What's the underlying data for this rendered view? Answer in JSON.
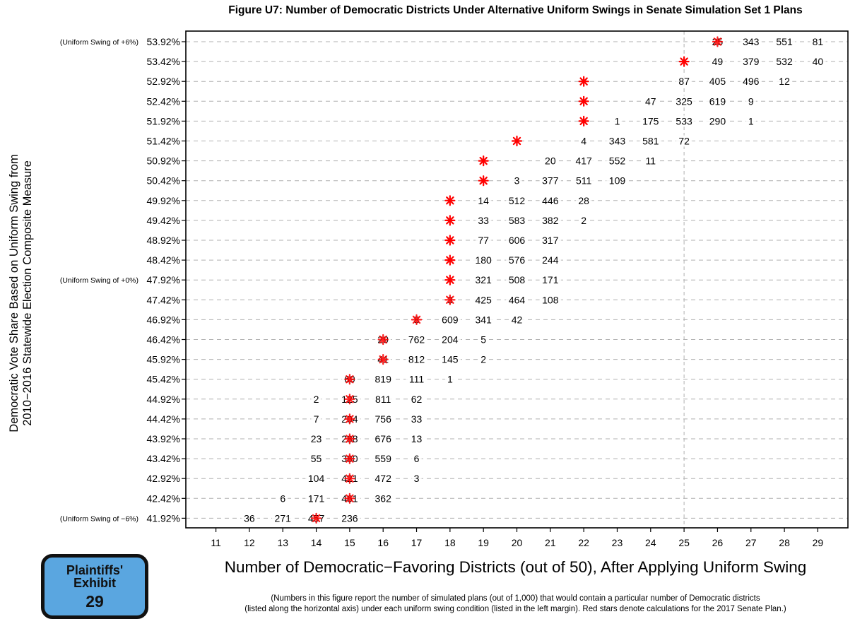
{
  "chart_data": {
    "type": "table",
    "title": "Figure U7: Number of Democratic Districts Under Alternative Uniform Swings in Senate Simulation Set 1 Plans",
    "xlabel": "Number of Democratic−Favoring Districts (out of 50), After Applying Uniform Swing",
    "ylabel_lines": [
      "Democratic Vote Share Based on Uniform Swing from",
      "2010−2016 Statewide Election Composite Measure"
    ],
    "note_lines": [
      "(Numbers in this figure report the number of simulated plans (out of 1,000) that would contain a particular number of Democratic districts",
      "(listed along the horizontal axis) under each uniform swing condition (listed in the left margin). Red stars denote calculations for the 2017 Senate Plan.)"
    ],
    "xlim": [
      10.1,
      29.9
    ],
    "xticks": [
      11,
      12,
      13,
      14,
      15,
      16,
      17,
      18,
      19,
      20,
      21,
      22,
      23,
      24,
      25,
      26,
      27,
      28,
      29
    ],
    "reference_line_x": 25,
    "grid": "horizontal dashed rows",
    "rows": [
      {
        "label": "53.92%",
        "note": "(Uniform Swing of +6%)",
        "star": 26,
        "counts": [
          [
            26,
            25
          ],
          [
            27,
            343
          ],
          [
            28,
            551
          ],
          [
            29,
            81
          ]
        ]
      },
      {
        "label": "53.42%",
        "note": "",
        "star": 25,
        "counts": [
          [
            26,
            49
          ],
          [
            27,
            379
          ],
          [
            28,
            532
          ],
          [
            29,
            40
          ]
        ]
      },
      {
        "label": "52.92%",
        "note": "",
        "star": 22,
        "counts": [
          [
            25,
            87
          ],
          [
            26,
            405
          ],
          [
            27,
            496
          ],
          [
            28,
            12
          ]
        ]
      },
      {
        "label": "52.42%",
        "note": "",
        "star": 22,
        "counts": [
          [
            24,
            47
          ],
          [
            25,
            325
          ],
          [
            26,
            619
          ],
          [
            27,
            9
          ]
        ]
      },
      {
        "label": "51.92%",
        "note": "",
        "star": 22,
        "counts": [
          [
            23,
            1
          ],
          [
            24,
            175
          ],
          [
            25,
            533
          ],
          [
            26,
            290
          ],
          [
            27,
            1
          ]
        ]
      },
      {
        "label": "51.42%",
        "note": "",
        "star": 20,
        "counts": [
          [
            22,
            4
          ],
          [
            23,
            343
          ],
          [
            24,
            581
          ],
          [
            25,
            72
          ]
        ]
      },
      {
        "label": "50.92%",
        "note": "",
        "star": 19,
        "counts": [
          [
            21,
            20
          ],
          [
            22,
            417
          ],
          [
            23,
            552
          ],
          [
            24,
            11
          ]
        ]
      },
      {
        "label": "50.42%",
        "note": "",
        "star": 19,
        "counts": [
          [
            20,
            3
          ],
          [
            21,
            377
          ],
          [
            22,
            511
          ],
          [
            23,
            109
          ]
        ]
      },
      {
        "label": "49.92%",
        "note": "",
        "star": 18,
        "counts": [
          [
            19,
            14
          ],
          [
            20,
            512
          ],
          [
            21,
            446
          ],
          [
            22,
            28
          ]
        ]
      },
      {
        "label": "49.42%",
        "note": "",
        "star": 18,
        "counts": [
          [
            19,
            33
          ],
          [
            20,
            583
          ],
          [
            21,
            382
          ],
          [
            22,
            2
          ]
        ]
      },
      {
        "label": "48.92%",
        "note": "",
        "star": 18,
        "counts": [
          [
            19,
            77
          ],
          [
            20,
            606
          ],
          [
            21,
            317
          ]
        ]
      },
      {
        "label": "48.42%",
        "note": "",
        "star": 18,
        "counts": [
          [
            19,
            180
          ],
          [
            20,
            576
          ],
          [
            21,
            244
          ]
        ]
      },
      {
        "label": "47.92%",
        "note": "(Uniform Swing of +0%)",
        "star": 18,
        "counts": [
          [
            19,
            321
          ],
          [
            20,
            508
          ],
          [
            21,
            171
          ]
        ]
      },
      {
        "label": "47.42%",
        "note": "",
        "star": 18,
        "counts": [
          [
            18,
            3
          ],
          [
            19,
            425
          ],
          [
            20,
            464
          ],
          [
            21,
            108
          ]
        ]
      },
      {
        "label": "46.92%",
        "note": "",
        "star": 17,
        "counts": [
          [
            17,
            8
          ],
          [
            18,
            609
          ],
          [
            19,
            341
          ],
          [
            20,
            42
          ]
        ]
      },
      {
        "label": "46.42%",
        "note": "",
        "star": 16,
        "counts": [
          [
            16,
            29
          ],
          [
            17,
            762
          ],
          [
            18,
            204
          ],
          [
            19,
            5
          ]
        ]
      },
      {
        "label": "45.92%",
        "note": "",
        "star": 16,
        "counts": [
          [
            16,
            41
          ],
          [
            17,
            812
          ],
          [
            18,
            145
          ],
          [
            19,
            2
          ]
        ]
      },
      {
        "label": "45.42%",
        "note": "",
        "star": 15,
        "counts": [
          [
            15,
            69
          ],
          [
            16,
            819
          ],
          [
            17,
            111
          ],
          [
            18,
            1
          ]
        ]
      },
      {
        "label": "44.92%",
        "note": "",
        "star": 15,
        "counts": [
          [
            14,
            2
          ],
          [
            15,
            125
          ],
          [
            16,
            811
          ],
          [
            17,
            62
          ]
        ]
      },
      {
        "label": "44.42%",
        "note": "",
        "star": 15,
        "counts": [
          [
            14,
            7
          ],
          [
            15,
            204
          ],
          [
            16,
            756
          ],
          [
            17,
            33
          ]
        ]
      },
      {
        "label": "43.92%",
        "note": "",
        "star": 15,
        "counts": [
          [
            14,
            23
          ],
          [
            15,
            288
          ],
          [
            16,
            676
          ],
          [
            17,
            13
          ]
        ]
      },
      {
        "label": "43.42%",
        "note": "",
        "star": 15,
        "counts": [
          [
            14,
            55
          ],
          [
            15,
            380
          ],
          [
            16,
            559
          ],
          [
            17,
            6
          ]
        ]
      },
      {
        "label": "42.92%",
        "note": "",
        "star": 15,
        "counts": [
          [
            14,
            104
          ],
          [
            15,
            421
          ],
          [
            16,
            472
          ],
          [
            17,
            3
          ]
        ]
      },
      {
        "label": "42.42%",
        "note": "",
        "star": 15,
        "counts": [
          [
            13,
            6
          ],
          [
            14,
            171
          ],
          [
            15,
            461
          ],
          [
            16,
            362
          ]
        ]
      },
      {
        "label": "41.92%",
        "note": "(Uniform Swing of −6%)",
        "star": 14,
        "counts": [
          [
            12,
            36
          ],
          [
            13,
            271
          ],
          [
            14,
            457
          ],
          [
            15,
            236
          ]
        ]
      }
    ]
  },
  "exhibit": {
    "line1": "Plaintiffs'",
    "line2": "Exhibit",
    "number": "29"
  },
  "colors": {
    "star": "#ff0000",
    "grid": "#b0b0b0",
    "exhibit_fill": "#5aa6e0"
  }
}
